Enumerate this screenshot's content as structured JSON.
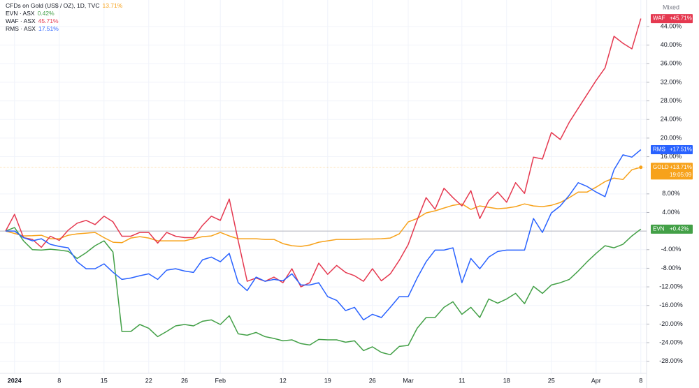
{
  "chart_data": {
    "type": "line",
    "mode_label": "Mixed",
    "grid": true,
    "baseline": 0,
    "categories": [
      null,
      "2024",
      null,
      null,
      null,
      null,
      "8",
      null,
      null,
      null,
      null,
      "15",
      null,
      null,
      null,
      null,
      "22",
      null,
      null,
      null,
      "26",
      null,
      null,
      null,
      "Feb",
      null,
      null,
      null,
      null,
      null,
      null,
      "12",
      null,
      null,
      null,
      null,
      "19",
      null,
      null,
      null,
      null,
      "26",
      null,
      null,
      null,
      "Mar",
      null,
      null,
      null,
      null,
      null,
      "11",
      null,
      null,
      null,
      null,
      "18",
      null,
      null,
      null,
      null,
      "25",
      null,
      null,
      null,
      null,
      "Apr",
      null,
      null,
      null,
      null,
      "8"
    ],
    "ylim": [
      -30.6,
      49.7
    ],
    "yticks": [
      {
        "value": 44,
        "label": "44.00%"
      },
      {
        "value": 40,
        "label": "40.00%"
      },
      {
        "value": 36,
        "label": "36.00%"
      },
      {
        "value": 32,
        "label": "32.00%"
      },
      {
        "value": 28,
        "label": "28.00%"
      },
      {
        "value": 24,
        "label": "24.00%"
      },
      {
        "value": 20,
        "label": "20.00%"
      },
      {
        "value": 16,
        "label": "16.00%"
      },
      {
        "value": 8,
        "label": "8.00%"
      },
      {
        "value": 4,
        "label": "4.00%"
      },
      {
        "value": -4,
        "label": "-4.00%"
      },
      {
        "value": -8,
        "label": "-8.00%"
      },
      {
        "value": -12,
        "label": "-12.00%"
      },
      {
        "value": -16,
        "label": "-16.00%"
      },
      {
        "value": -20,
        "label": "-20.00%"
      },
      {
        "value": -24,
        "label": "-24.00%"
      },
      {
        "value": -28,
        "label": "-28.00%"
      }
    ],
    "series": [
      {
        "name": "CFDs on Gold (US$ / OZ), 1D, TVC",
        "tag": "GOLD",
        "color": "#f7a21b",
        "legend_label": "13.71%",
        "axis_label": "+13.71%",
        "countdown": "19:05:09",
        "values": [
          0,
          -0.5,
          -1.05,
          -1.0,
          -0.9,
          -1.65,
          -1.65,
          -0.9,
          -0.6,
          -0.45,
          -0.3,
          -1.4,
          -2.4,
          -2.5,
          -1.5,
          -1.2,
          -1.5,
          -2.1,
          -2.1,
          -2.1,
          -2.1,
          -1.65,
          -1.2,
          -1.05,
          -0.3,
          -1.05,
          -1.65,
          -1.65,
          -1.65,
          -1.8,
          -1.8,
          -2.7,
          -3.15,
          -3.3,
          -3.0,
          -2.4,
          -2.1,
          -1.8,
          -1.8,
          -1.8,
          -1.7,
          -1.7,
          -1.65,
          -1.5,
          -0.6,
          1.95,
          2.7,
          3.9,
          4.35,
          4.95,
          5.55,
          5.85,
          4.65,
          5.4,
          5.1,
          4.8,
          4.95,
          5.25,
          5.85,
          5.4,
          5.25,
          5.55,
          6.15,
          7.2,
          8.4,
          8.4,
          9.45,
          10.65,
          11.4,
          11.1,
          13.2,
          13.71
        ]
      },
      {
        "name": "EVN · ASX",
        "tag": "EVN",
        "color": "#43a047",
        "legend_label": "0.42%",
        "axis_label": "+0.42%",
        "values": [
          0,
          0.75,
          -2.1,
          -4.0,
          -4.1,
          -3.9,
          -4.1,
          -4.35,
          -5.9,
          -4.65,
          -3.15,
          -2.1,
          -4.5,
          -21.6,
          -21.6,
          -20.1,
          -20.9,
          -22.7,
          -21.6,
          -20.4,
          -20.1,
          -20.4,
          -19.4,
          -19.1,
          -20.1,
          -18.2,
          -22.1,
          -22.4,
          -21.8,
          -22.7,
          -23.1,
          -23.6,
          -23.4,
          -24.2,
          -24.5,
          -23.3,
          -23.4,
          -23.4,
          -23.9,
          -23.6,
          -25.7,
          -24.9,
          -26.1,
          -26.6,
          -24.8,
          -24.6,
          -20.9,
          -18.6,
          -18.6,
          -16.4,
          -15.2,
          -17.9,
          -16.4,
          -18.6,
          -14.6,
          -15.5,
          -14.6,
          -13.4,
          -15.6,
          -11.9,
          -13.4,
          -11.6,
          -11.1,
          -10.4,
          -8.6,
          -6.6,
          -4.8,
          -3.15,
          -3.6,
          -2.85,
          -1.05,
          0.42
        ]
      },
      {
        "name": "WAF · ASX",
        "tag": "WAF",
        "color": "#e53950",
        "legend_label": "45.71%",
        "axis_label": "+45.71%",
        "values": [
          0,
          3.6,
          -1.4,
          -1.8,
          -3.5,
          -1.1,
          -2.0,
          0.2,
          1.7,
          2.3,
          1.4,
          3.2,
          2.0,
          -1.1,
          -1.1,
          -0.3,
          -0.3,
          -2.6,
          -0.3,
          -1.1,
          -1.4,
          -1.4,
          1.2,
          3.2,
          2.3,
          6.9,
          -2.1,
          -10.8,
          -10.1,
          -10.8,
          -9.9,
          -11.1,
          -8.1,
          -12.0,
          -11.1,
          -6.9,
          -9.3,
          -7.4,
          -8.9,
          -9.6,
          -10.8,
          -8.1,
          -10.7,
          -9.2,
          -6.3,
          -2.9,
          2.4,
          7.2,
          4.7,
          9.2,
          7.2,
          5.4,
          8.7,
          2.7,
          6.5,
          8.4,
          6.2,
          10.4,
          8.1,
          15.9,
          15.5,
          21.2,
          19.7,
          23.4,
          26.4,
          29.4,
          32.4,
          35.1,
          41.9,
          40.4,
          39.2,
          45.71
        ]
      },
      {
        "name": "RMS · ASX",
        "tag": "RMS",
        "color": "#2962ff",
        "legend_label": "17.51%",
        "axis_label": "+17.51%",
        "values": [
          0,
          0,
          -1.4,
          -2.1,
          -1.65,
          -2.85,
          -3.3,
          -3.6,
          -6.6,
          -8.1,
          -8.1,
          -7.05,
          -8.85,
          -10.4,
          -10.1,
          -9.6,
          -9.2,
          -10.4,
          -8.4,
          -8.1,
          -8.6,
          -8.9,
          -6.2,
          -5.6,
          -6.6,
          -4.8,
          -11.1,
          -12.8,
          -9.9,
          -10.8,
          -10.4,
          -10.7,
          -9.2,
          -11.6,
          -11.6,
          -11.1,
          -14.1,
          -14.9,
          -17.1,
          -16.4,
          -19.1,
          -17.9,
          -18.6,
          -16.4,
          -14.1,
          -14.1,
          -10.1,
          -6.6,
          -4.1,
          -4.1,
          -3.6,
          -11.1,
          -5.9,
          -8.1,
          -5.6,
          -4.4,
          -4.1,
          -4.1,
          -4.1,
          2.7,
          -0.3,
          3.9,
          5.4,
          7.7,
          10.4,
          9.6,
          8.4,
          7.4,
          13.2,
          16.4,
          15.9,
          17.51
        ]
      }
    ]
  }
}
